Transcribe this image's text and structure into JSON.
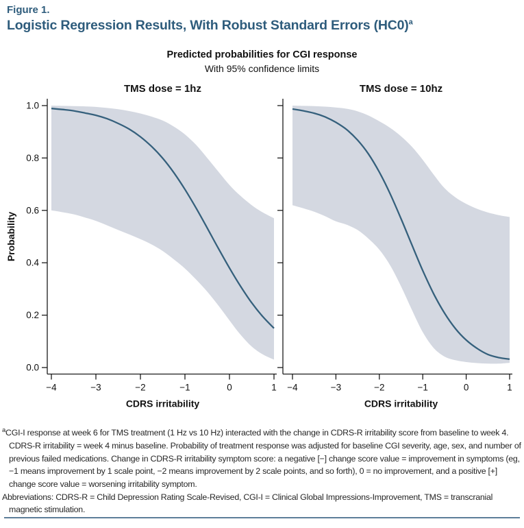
{
  "figure_label": "Figure 1.",
  "title": "Logistic Regression Results, With Robust Standard Errors (HC0)",
  "title_superscript": "a",
  "colors": {
    "heading": "#2e5c7c",
    "fit_line": "#35607c",
    "confidence_band": "#d4d8e1",
    "divider": "#5c7d99",
    "axis": "#1a1a1a",
    "text": "#262626"
  },
  "chart_data": {
    "type": "line",
    "title": "Predicted probabilities for CGI response",
    "subtitle": "With 95% confidence limits",
    "xlabel": "CDRS irritability",
    "ylabel": "Probability",
    "xlim": [
      -4,
      1
    ],
    "ylim": [
      0,
      1
    ],
    "xticks": [
      -4,
      -3,
      -2,
      -1,
      0,
      1
    ],
    "yticks": [
      0.0,
      0.2,
      0.4,
      0.6,
      0.8,
      1.0
    ],
    "grid": false,
    "legend_position": "none",
    "x_start": -4,
    "x_step": 0.25,
    "panels": [
      {
        "title": "TMS dose = 1hz",
        "series_note": "logistic fit with 95% CI band",
        "fit": [
          0.989,
          0.985,
          0.98,
          0.972,
          0.963,
          0.95,
          0.932,
          0.91,
          0.881,
          0.844,
          0.799,
          0.744,
          0.68,
          0.609,
          0.533,
          0.455,
          0.38,
          0.31,
          0.247,
          0.194,
          0.15
        ],
        "upper": [
          1.0,
          0.999,
          0.998,
          0.997,
          0.995,
          0.991,
          0.986,
          0.979,
          0.97,
          0.958,
          0.943,
          0.92,
          0.89,
          0.85,
          0.8,
          0.748,
          0.697,
          0.655,
          0.62,
          0.592,
          0.57
        ],
        "lower": [
          0.6,
          0.593,
          0.585,
          0.573,
          0.56,
          0.543,
          0.525,
          0.508,
          0.49,
          0.47,
          0.445,
          0.413,
          0.378,
          0.336,
          0.29,
          0.237,
          0.18,
          0.125,
          0.08,
          0.05,
          0.03
        ]
      },
      {
        "title": "TMS dose = 10hz",
        "series_note": "logistic fit with 95% CI band",
        "fit": [
          0.987,
          0.98,
          0.971,
          0.957,
          0.936,
          0.908,
          0.868,
          0.815,
          0.746,
          0.663,
          0.568,
          0.468,
          0.37,
          0.282,
          0.208,
          0.149,
          0.105,
          0.073,
          0.05,
          0.038,
          0.032
        ],
        "upper": [
          1.0,
          0.999,
          0.998,
          0.996,
          0.993,
          0.988,
          0.978,
          0.962,
          0.94,
          0.915,
          0.883,
          0.843,
          0.793,
          0.737,
          0.685,
          0.65,
          0.625,
          0.606,
          0.592,
          0.582,
          0.575
        ],
        "lower": [
          0.62,
          0.608,
          0.595,
          0.578,
          0.558,
          0.545,
          0.525,
          0.492,
          0.45,
          0.39,
          0.31,
          0.22,
          0.135,
          0.075,
          0.042,
          0.028,
          0.021,
          0.017,
          0.015,
          0.015,
          0.018
        ]
      }
    ]
  },
  "footnote": {
    "marker": "a",
    "paragraph1": "CGI-I response at week 6 for TMS treatment (1 Hz vs 10 Hz) interacted with the change in CDRS-R irritability score from baseline to week 4. CDRS-R irritability = week 4 minus baseline. Probability of treatment response was adjusted for baseline CGI severity, age, sex, and number of previous failed medications. Change in CDRS-R irritability symptom score: a negative [−] change score value = improvement in symptoms (eg, −1 means improvement by 1 scale point, −2 means improvement by 2 scale points, and so forth), 0 = no improvement, and a positive [+] change score value = worsening irritability symptom.",
    "paragraph2": "Abbreviations: CDRS-R = Child Depression Rating Scale-Revised, CGI-I = Clinical Global Impressions-Improvement, TMS = transcranial magnetic stimulation."
  }
}
